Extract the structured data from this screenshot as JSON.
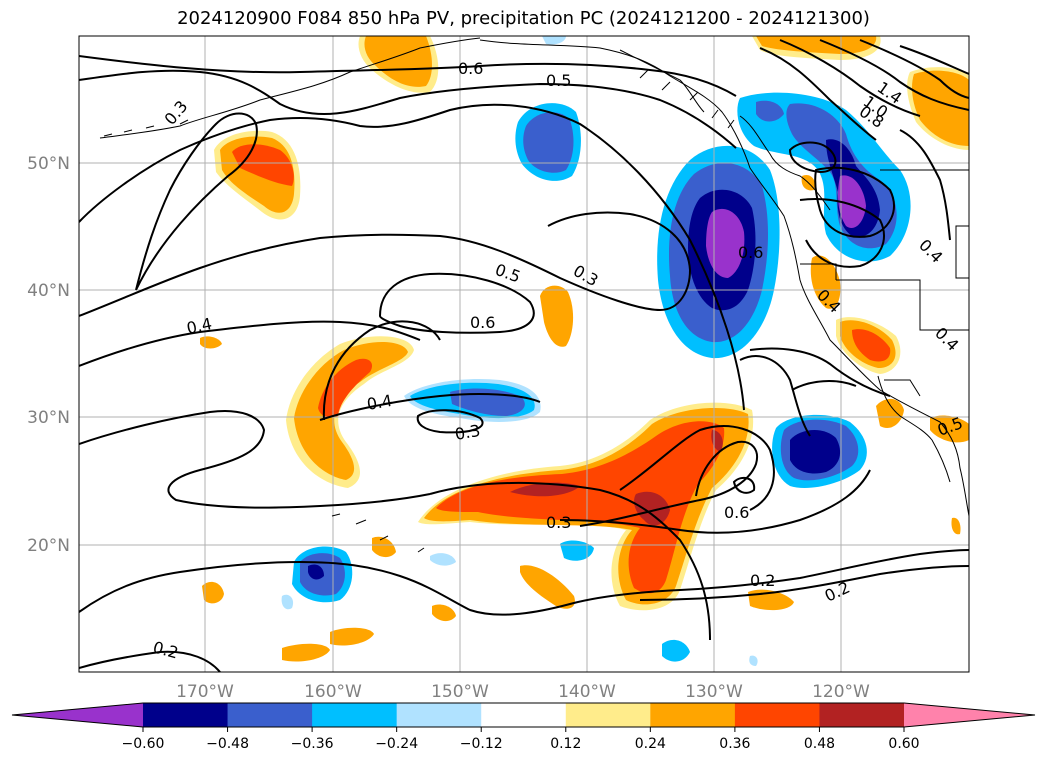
{
  "title": "2024120900 F084 850 hPa PV, precipitation PC (2024121200 - 2024121300)",
  "map": {
    "lon_range": [
      -180,
      -110
    ],
    "lat_range": [
      10,
      60
    ],
    "lat_labels": [
      "20°N",
      "30°N",
      "40°N",
      "50°N"
    ],
    "lon_labels": [
      "170°W",
      "160°W",
      "150°W",
      "140°W",
      "130°W",
      "120°W"
    ],
    "contour_labels": [
      "0.6",
      "0.5",
      "0.3",
      "0.5",
      "0.3",
      "0.6",
      "0.4",
      "0.4",
      "0.3",
      "0.3",
      "0.6",
      "0.2",
      "0.2",
      "0.2",
      "0.6",
      "1.4",
      "1.0",
      "0.8",
      "0.4",
      "0.4",
      "0.4",
      "0.5"
    ]
  },
  "colorbar": {
    "ticks": [
      "−0.60",
      "−0.48",
      "−0.36",
      "−0.24",
      "−0.12",
      "0.12",
      "0.24",
      "0.36",
      "0.48",
      "0.60"
    ],
    "colors": [
      "#9932cc",
      "#00008b",
      "#3a5fcd",
      "#00bfff",
      "#b0e2ff",
      "#ffffff",
      "#ffec8b",
      "#ffa500",
      "#ff4500",
      "#b22222",
      "#ff82ab"
    ]
  }
}
